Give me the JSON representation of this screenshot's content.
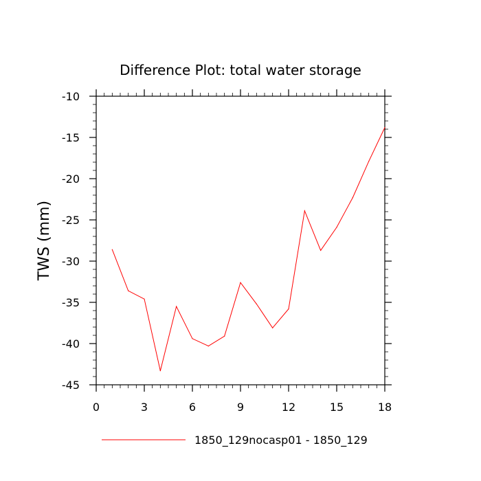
{
  "chart_data": {
    "type": "line",
    "title": "Difference Plot: total water storage",
    "xlabel": "",
    "ylabel": "TWS  (mm)",
    "xlim": [
      0,
      18
    ],
    "ylim": [
      -45,
      -10
    ],
    "xticks": [
      0,
      3,
      6,
      9,
      12,
      15,
      18
    ],
    "xtick_labels": [
      "0",
      "3",
      "6",
      "9",
      "12",
      "15",
      "18"
    ],
    "yticks": [
      -10,
      -15,
      -20,
      -25,
      -30,
      -35,
      -40,
      -45
    ],
    "ytick_labels": [
      "-10",
      "-15",
      "-20",
      "-25",
      "-30",
      "-35",
      "-40",
      "-45"
    ],
    "grid": false,
    "legend_position": "bottom",
    "series": [
      {
        "name": "1850_129nocasp01 - 1850_129",
        "color": "#ff0000",
        "x": [
          1,
          2,
          3,
          4,
          5,
          6,
          7,
          8,
          9,
          10,
          11,
          12,
          13,
          14,
          15,
          16,
          17,
          18
        ],
        "values": [
          -28.6,
          -33.6,
          -34.6,
          -43.3,
          -35.5,
          -39.4,
          -40.3,
          -39.1,
          -32.6,
          -35.2,
          -38.1,
          -35.8,
          -23.9,
          -28.7,
          -25.9,
          -22.3,
          -17.9,
          -13.8
        ]
      }
    ]
  }
}
